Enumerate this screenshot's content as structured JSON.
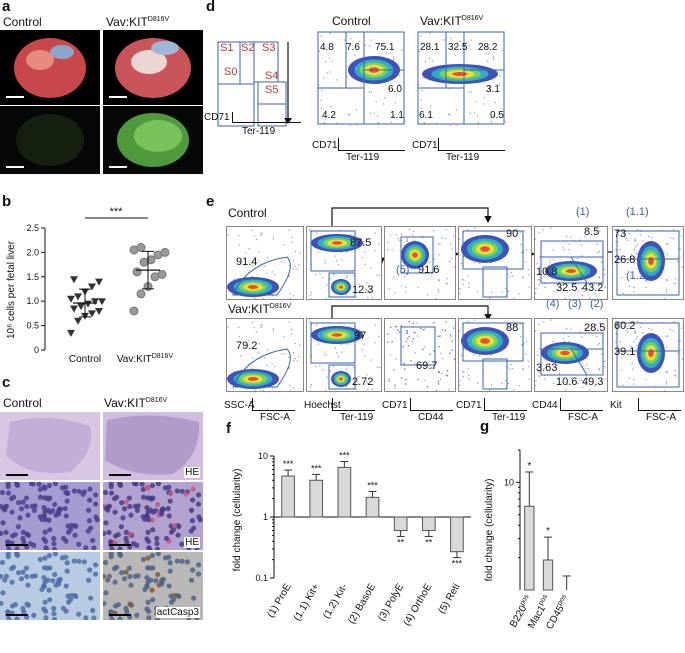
{
  "panels": {
    "a": "a",
    "b": "b",
    "c": "c",
    "d": "d",
    "e": "e",
    "f": "f",
    "g": "g"
  },
  "a": {
    "left_title": "Control",
    "right_title": "Vav:KIT",
    "right_sup": "D816V"
  },
  "b": {
    "sig": "***",
    "ylabel": "10⁶ cells per fetal liver",
    "yticks": [
      "0",
      "0.5",
      "1.0",
      "1.5",
      "2.0",
      "2.5"
    ],
    "xticks": [
      "Control",
      "Vav:KIT"
    ],
    "xsup": "D816V"
  },
  "c": {
    "left_title": "Control",
    "right_title": "Vav:KIT",
    "right_sup": "D816V",
    "stain1": "HE",
    "stain2": "HE",
    "stain3": "actCasp3"
  },
  "d": {
    "schema": {
      "s1": "S1",
      "s2": "S2",
      "s3": "S3",
      "s0": "S0",
      "s4": "S4",
      "s5": "S5",
      "y": "CD71",
      "x": "Ter-119"
    },
    "control": {
      "title": "Control",
      "q": [
        "4.8",
        "7.6",
        "75.1",
        "6.0",
        "4.2",
        "1.1"
      ],
      "y": "CD71",
      "x": "Ter-119"
    },
    "vav": {
      "title": "Vav:KIT",
      "sup": "D816V",
      "q": [
        "28.1",
        "32.5",
        "28.2",
        "3.1",
        "6.1",
        "0.5"
      ],
      "y": "CD71",
      "x": "Ter-119"
    }
  },
  "e": {
    "row1": "Control",
    "row2": "Vav:KIT",
    "row2sup": "D816V",
    "c": {
      "p1": "91.4",
      "p2a": "87.5",
      "p2b": "12.3",
      "p3": "91.6",
      "p3tag": "(5)",
      "p4": "90",
      "p5a": "8.5",
      "p5b": "10.8",
      "p5c": "32.5",
      "p5d": "43.2",
      "p6a": "73",
      "p6b": "26.8"
    },
    "gtag": {
      "g1": "(1)",
      "g11": "(1.1)",
      "g12": "(1.2)",
      "g4": "(4)",
      "g3": "(3)",
      "g2": "(2)"
    },
    "v": {
      "p1": "79.2",
      "p2a": "97",
      "p2b": "2.72",
      "p3": "69.7",
      "p4": "88",
      "p5a": "28.5",
      "p5b": "3.63",
      "p5c": "10.6",
      "p5d": "49.3",
      "p6a": "60.2",
      "p6b": "39.1"
    },
    "axes": [
      {
        "y": "SSC-A",
        "x": "FSC-A"
      },
      {
        "y": "Hoechst",
        "x": "Ter-119"
      },
      {
        "y": "CD71",
        "x": "CD44"
      },
      {
        "y": "CD71",
        "x": "Ter-119"
      },
      {
        "y": "CD44",
        "x": "FSC-A"
      },
      {
        "y": "Kit",
        "x": "FSC-A"
      }
    ]
  },
  "f": {
    "ylabel": "fold change (cellularity)",
    "yticks": [
      "10",
      "1",
      "0.1"
    ],
    "categories": [
      "(1) ProE",
      "(1.1) Kit+",
      "(1.2) Kit-",
      "(2) BasoE",
      "(3) PolyE",
      "(4) OrthoE",
      "(5) Reti"
    ],
    "sig": [
      "***",
      "***",
      "***",
      "***",
      "**",
      "**",
      "***"
    ]
  },
  "g": {
    "ylabel": "fold change (cellularity)",
    "ytick": "10",
    "categories": [
      "B220",
      "Mac1",
      "CD45"
    ],
    "catsup": "pos",
    "sig": [
      "*",
      "*",
      ""
    ]
  },
  "chart_data": [
    {
      "type": "scatter",
      "xlabel": "",
      "ylabel": "10⁶ cells per fetal liver",
      "ylim": [
        0,
        2.5
      ],
      "series": [
        {
          "name": "Control",
          "values": [
            0.35,
            0.6,
            0.7,
            0.75,
            0.8,
            0.85,
            0.9,
            0.95,
            1.0,
            1.0,
            1.05,
            1.1,
            1.2,
            1.3,
            1.4,
            1.45
          ]
        },
        {
          "name": "Vav:KIT D816V",
          "values": [
            0.8,
            1.15,
            1.3,
            1.5,
            1.55,
            1.6,
            1.8,
            1.85,
            1.95,
            2.0,
            2.05,
            2.1
          ]
        }
      ]
    },
    {
      "type": "bar",
      "categories": [
        "(1) ProE",
        "(1.1) Kit+",
        "(1.2) Kit-",
        "(2) BasoE",
        "(3) PolyE",
        "(4) OrthoE",
        "(5) Reti"
      ],
      "values": [
        4.7,
        4.0,
        6.5,
        2.1,
        0.6,
        0.6,
        0.27
      ],
      "ylabel": "fold change (cellularity)",
      "ylim": [
        0.1,
        10
      ],
      "yscale": "log"
    },
    {
      "type": "bar",
      "categories": [
        "B220pos",
        "Mac1pos",
        "CD45pos"
      ],
      "values": [
        6.0,
        1.9,
        1.0
      ],
      "ylabel": "fold change (cellularity)",
      "ylim": [
        1,
        20
      ],
      "yscale": "log"
    }
  ]
}
